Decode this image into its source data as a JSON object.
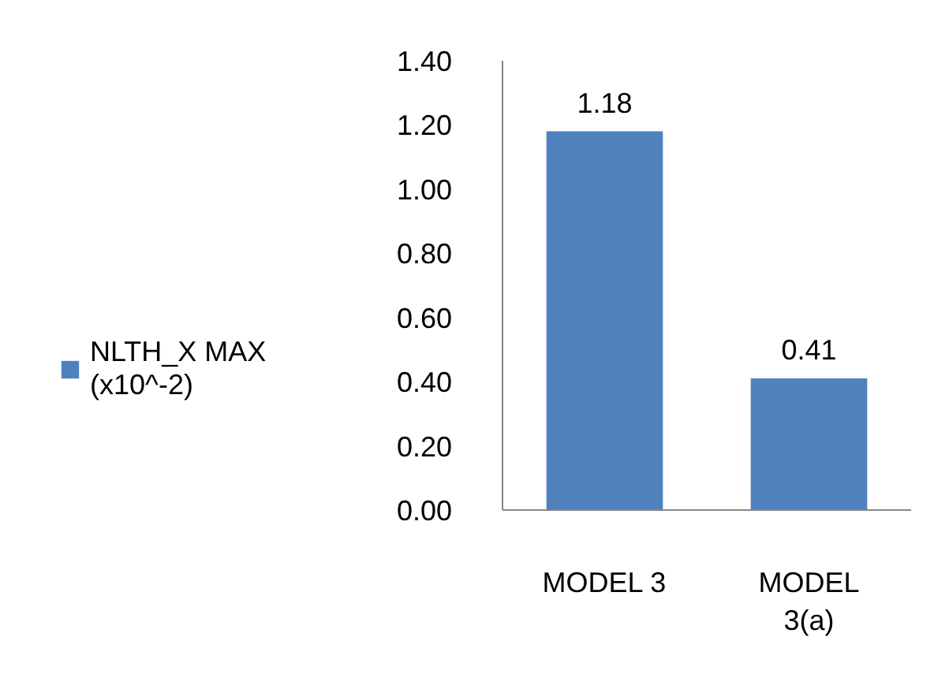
{
  "chart_data": {
    "type": "bar",
    "categories": [
      "MODEL 3",
      "MODEL 3(a)"
    ],
    "series": [
      {
        "name": "NLTH_X MAX (x10^-2)",
        "color": "#4f81bd",
        "values": [
          1.18,
          0.41
        ]
      }
    ],
    "ylim": [
      0,
      1.4
    ],
    "yticks": [
      {
        "value": 0,
        "label": "0.00"
      },
      {
        "value": 0.2,
        "label": "0.20"
      },
      {
        "value": 0.4,
        "label": "0.40"
      },
      {
        "value": 0.6,
        "label": "0.60"
      },
      {
        "value": 0.8,
        "label": "0.80"
      },
      {
        "value": 1.0,
        "label": "1.00"
      },
      {
        "value": 1.2,
        "label": "1.20"
      },
      {
        "value": 1.4,
        "label": "1.40"
      }
    ],
    "data_labels": true,
    "legend": "left",
    "grid": false
  }
}
